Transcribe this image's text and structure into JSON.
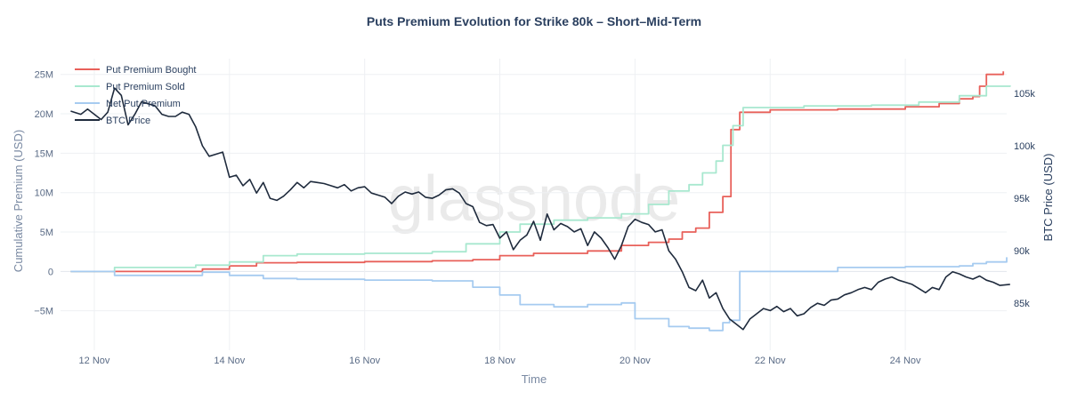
{
  "chart_data": {
    "type": "line",
    "title": "Puts Premium Evolution for Strike 80k – Short–Mid-Term",
    "xlabel": "Time",
    "ylabel_left": "Cumulative Premium (USD)",
    "ylabel_right": "BTC Price (USD)",
    "watermark": "glassnode",
    "x_range_days": [
      11.5,
      25.5
    ],
    "x_ticks": [
      {
        "day": 12,
        "label": "12 Nov"
      },
      {
        "day": 14,
        "label": "14 Nov"
      },
      {
        "day": 16,
        "label": "16 Nov"
      },
      {
        "day": 18,
        "label": "18 Nov"
      },
      {
        "day": 20,
        "label": "20 Nov"
      },
      {
        "day": 22,
        "label": "22 Nov"
      },
      {
        "day": 24,
        "label": "24 Nov"
      }
    ],
    "y_left_range": [
      -10000000,
      27000000
    ],
    "y_left_ticks": [
      {
        "value": -5000000,
        "label": "−5M"
      },
      {
        "value": 0,
        "label": "0"
      },
      {
        "value": 5000000,
        "label": "5M"
      },
      {
        "value": 10000000,
        "label": "10M"
      },
      {
        "value": 15000000,
        "label": "15M"
      },
      {
        "value": 20000000,
        "label": "20M"
      },
      {
        "value": 25000000,
        "label": "25M"
      }
    ],
    "y_right_range": [
      80525,
      108300
    ],
    "y_right_ticks": [
      {
        "value": 85000,
        "label": "85k"
      },
      {
        "value": 90000,
        "label": "90k"
      },
      {
        "value": 95000,
        "label": "95k"
      },
      {
        "value": 100000,
        "label": "100k"
      },
      {
        "value": 105000,
        "label": "105k"
      }
    ],
    "series": [
      {
        "name": "Put Premium Bought",
        "axis": "left",
        "color": "#e8605a",
        "step": true,
        "x": [
          11.65,
          13.6,
          14.0,
          14.4,
          15.0,
          16.0,
          17.0,
          17.6,
          18.0,
          18.5,
          19.3,
          19.8,
          20.2,
          20.5,
          20.7,
          20.9,
          21.1,
          21.3,
          21.42,
          21.55,
          22.0,
          23.0,
          24.0,
          24.5,
          24.8,
          25.0,
          25.1,
          25.2,
          25.45
        ],
        "values": [
          0,
          300000,
          700000,
          1100000,
          1150000,
          1250000,
          1350000,
          1500000,
          2000000,
          2300000,
          2600000,
          3300000,
          3700000,
          4100000,
          5000000,
          5500000,
          7500000,
          9500000,
          18000000,
          20200000,
          20500000,
          20600000,
          20900000,
          21300000,
          21900000,
          22200000,
          23500000,
          25000000,
          25400000
        ]
      },
      {
        "name": "Put Premium Sold",
        "axis": "left",
        "color": "#a8e8cf",
        "step": true,
        "x": [
          11.65,
          12.3,
          13.5,
          14.0,
          14.5,
          15.0,
          16.0,
          17.0,
          17.5,
          18.0,
          18.3,
          18.8,
          19.3,
          19.8,
          20.2,
          20.5,
          20.8,
          21.0,
          21.2,
          21.3,
          21.45,
          21.6,
          22.5,
          23.5,
          24.2,
          24.8,
          25.2,
          25.55
        ],
        "values": [
          0,
          500000,
          800000,
          1200000,
          2000000,
          2200000,
          2300000,
          2500000,
          3500000,
          5000000,
          6000000,
          6500000,
          6800000,
          7300000,
          8500000,
          10200000,
          11000000,
          12500000,
          14000000,
          16000000,
          18500000,
          20800000,
          21000000,
          21100000,
          21500000,
          22300000,
          23500000,
          23600000
        ]
      },
      {
        "name": "Net Put Premium",
        "axis": "left",
        "color": "#a6cbf0",
        "step": true,
        "x": [
          11.65,
          12.3,
          13.6,
          14.0,
          14.5,
          15.0,
          16.0,
          17.0,
          17.6,
          18.0,
          18.3,
          18.8,
          19.3,
          19.8,
          20.0,
          20.5,
          20.8,
          21.1,
          21.3,
          21.4,
          21.55,
          22.0,
          23.0,
          24.0,
          24.8,
          25.0,
          25.2,
          25.5
        ],
        "values": [
          0,
          -500000,
          -100000,
          -500000,
          -900000,
          -1000000,
          -1100000,
          -1200000,
          -2000000,
          -3000000,
          -4200000,
          -4500000,
          -4200000,
          -4000000,
          -6000000,
          -7000000,
          -7200000,
          -7500000,
          -6500000,
          -6200000,
          0,
          0,
          500000,
          600000,
          700000,
          1000000,
          1200000,
          1800000
        ]
      },
      {
        "name": "BTC Price",
        "axis": "right",
        "color": "#1f2b3d",
        "step": false,
        "x": [
          11.65,
          11.8,
          11.9,
          12.0,
          12.1,
          12.2,
          12.3,
          12.4,
          12.5,
          12.6,
          12.7,
          12.8,
          12.9,
          13.0,
          13.1,
          13.2,
          13.3,
          13.4,
          13.5,
          13.6,
          13.7,
          13.8,
          13.9,
          14.0,
          14.1,
          14.2,
          14.3,
          14.4,
          14.5,
          14.6,
          14.7,
          14.8,
          14.9,
          15.0,
          15.1,
          15.2,
          15.3,
          15.4,
          15.5,
          15.6,
          15.7,
          15.8,
          15.9,
          16.0,
          16.1,
          16.2,
          16.3,
          16.4,
          16.5,
          16.6,
          16.7,
          16.8,
          16.9,
          17.0,
          17.1,
          17.2,
          17.3,
          17.4,
          17.5,
          17.6,
          17.7,
          17.8,
          17.9,
          18.0,
          18.1,
          18.2,
          18.3,
          18.4,
          18.5,
          18.6,
          18.7,
          18.8,
          18.9,
          19.0,
          19.1,
          19.2,
          19.3,
          19.4,
          19.5,
          19.6,
          19.7,
          19.8,
          19.9,
          20.0,
          20.1,
          20.2,
          20.3,
          20.4,
          20.5,
          20.6,
          20.7,
          20.8,
          20.9,
          21.0,
          21.1,
          21.2,
          21.3,
          21.4,
          21.5,
          21.6,
          21.7,
          21.8,
          21.9,
          22.0,
          22.1,
          22.2,
          22.3,
          22.4,
          22.5,
          22.6,
          22.7,
          22.8,
          22.9,
          23.0,
          23.1,
          23.2,
          23.3,
          23.4,
          23.5,
          23.6,
          23.7,
          23.8,
          23.9,
          24.0,
          24.1,
          24.2,
          24.3,
          24.4,
          24.5,
          24.6,
          24.7,
          24.8,
          24.9,
          25.0,
          25.1,
          25.2,
          25.3,
          25.4,
          25.55
        ],
        "values": [
          103300,
          103000,
          103500,
          103000,
          102500,
          103200,
          105500,
          104800,
          102000,
          103000,
          104200,
          104000,
          103800,
          103000,
          102800,
          102800,
          103200,
          103000,
          101800,
          100000,
          99000,
          99200,
          99400,
          97000,
          97200,
          96200,
          96800,
          95500,
          96500,
          95000,
          94800,
          95200,
          95800,
          96500,
          96000,
          96600,
          96500,
          96400,
          96200,
          96000,
          96300,
          95700,
          96000,
          96100,
          95500,
          95300,
          95100,
          94500,
          95200,
          95600,
          95400,
          95600,
          95100,
          95000,
          95300,
          95800,
          95900,
          95500,
          94500,
          94200,
          92700,
          92400,
          92500,
          91200,
          91800,
          90100,
          91000,
          91500,
          92800,
          91000,
          93500,
          92000,
          92600,
          92300,
          91800,
          92100,
          90500,
          91800,
          91200,
          90300,
          89200,
          90500,
          92300,
          93000,
          92700,
          92500,
          91800,
          92000,
          90000,
          89200,
          88000,
          86500,
          86200,
          87200,
          85500,
          86000,
          84500,
          83500,
          83000,
          82500,
          83500,
          84000,
          84500,
          84300,
          84700,
          84200,
          84500,
          83800,
          84000,
          84600,
          85000,
          84800,
          85300,
          85400,
          85800,
          86000,
          86300,
          86500,
          86300,
          87000,
          87300,
          87500,
          87200,
          87000,
          86800,
          86400,
          86000,
          86500,
          86300,
          87500,
          88000,
          87800,
          87500,
          87300,
          87600,
          87200,
          87000,
          86700,
          86800
        ]
      }
    ],
    "legend": [
      {
        "label": "Put Premium Bought",
        "color": "#e8605a"
      },
      {
        "label": "Put Premium Sold",
        "color": "#a8e8cf"
      },
      {
        "label": "Net Put Premium",
        "color": "#a6cbf0"
      },
      {
        "label": "BTC Price",
        "color": "#1f2b3d"
      }
    ]
  }
}
